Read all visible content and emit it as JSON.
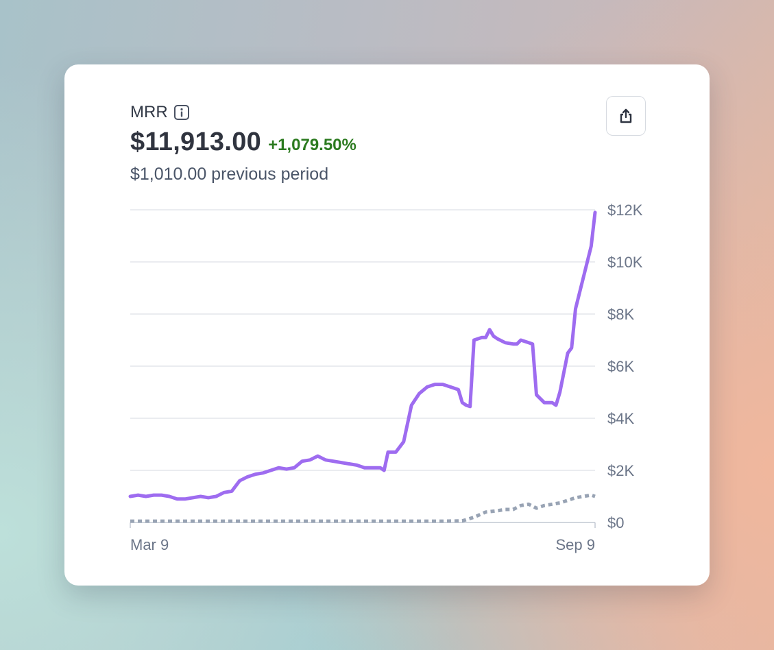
{
  "metric": {
    "name": "MRR",
    "value": "$11,913.00",
    "change": "+1,079.50%",
    "previous_period": "$1,010.00 previous period"
  },
  "icons": {
    "info": "info-icon",
    "export": "share-export-icon"
  },
  "colors": {
    "current_line": "#9e6cf0",
    "previous_line": "#98a3b4",
    "positive_change": "#2b7a1f"
  },
  "chart_data": {
    "type": "line",
    "title": "MRR",
    "x_labels": [
      "Mar 9",
      "Sep 9"
    ],
    "ylim": [
      0,
      12000
    ],
    "y_ticks": [
      0,
      2000,
      4000,
      6000,
      8000,
      10000,
      12000
    ],
    "y_tick_labels": [
      "$0",
      "$2K",
      "$4K",
      "$6K",
      "$8K",
      "$10K",
      "$12K"
    ],
    "y_axis_side": "right",
    "grid": "horizontal",
    "legend": "none",
    "series": [
      {
        "style": "solid",
        "color": "#9e6cf0",
        "points": [
          [
            0,
            1000
          ],
          [
            2,
            1050
          ],
          [
            4,
            1000
          ],
          [
            6,
            1050
          ],
          [
            8,
            1050
          ],
          [
            10,
            1000
          ],
          [
            12,
            900
          ],
          [
            14,
            900
          ],
          [
            16,
            950
          ],
          [
            18,
            1000
          ],
          [
            20,
            950
          ],
          [
            22,
            1000
          ],
          [
            24,
            1150
          ],
          [
            26,
            1200
          ],
          [
            28,
            1600
          ],
          [
            30,
            1750
          ],
          [
            32,
            1850
          ],
          [
            34,
            1900
          ],
          [
            36,
            2000
          ],
          [
            38,
            2100
          ],
          [
            40,
            2050
          ],
          [
            42,
            2100
          ],
          [
            44,
            2350
          ],
          [
            46,
            2400
          ],
          [
            48,
            2550
          ],
          [
            50,
            2400
          ],
          [
            52,
            2350
          ],
          [
            54,
            2300
          ],
          [
            56,
            2250
          ],
          [
            58,
            2200
          ],
          [
            60,
            2100
          ],
          [
            62,
            2100
          ],
          [
            64,
            2100
          ],
          [
            65,
            2000
          ],
          [
            66,
            2700
          ],
          [
            68,
            2700
          ],
          [
            70,
            3100
          ],
          [
            72,
            4500
          ],
          [
            74,
            4950
          ],
          [
            76,
            5200
          ],
          [
            78,
            5300
          ],
          [
            80,
            5300
          ],
          [
            82,
            5200
          ],
          [
            84,
            5100
          ],
          [
            85,
            4600
          ],
          [
            86,
            4500
          ],
          [
            87,
            4450
          ],
          [
            88,
            7000
          ],
          [
            90,
            7100
          ],
          [
            91,
            7100
          ],
          [
            92,
            7400
          ],
          [
            93,
            7150
          ],
          [
            94,
            7050
          ],
          [
            96,
            6900
          ],
          [
            98,
            6850
          ],
          [
            99,
            6850
          ],
          [
            100,
            7000
          ],
          [
            102,
            6900
          ],
          [
            103,
            6850
          ],
          [
            104,
            4900
          ],
          [
            106,
            4600
          ],
          [
            108,
            4600
          ],
          [
            109,
            4500
          ],
          [
            110,
            5000
          ],
          [
            112,
            6500
          ],
          [
            113,
            6700
          ],
          [
            114,
            8200
          ],
          [
            116,
            9400
          ],
          [
            118,
            10600
          ],
          [
            119,
            11900
          ]
        ]
      },
      {
        "style": "dotted",
        "color": "#98a3b4",
        "points": [
          [
            0,
            50
          ],
          [
            20,
            50
          ],
          [
            40,
            50
          ],
          [
            60,
            50
          ],
          [
            80,
            50
          ],
          [
            85,
            60
          ],
          [
            88,
            200
          ],
          [
            91,
            400
          ],
          [
            94,
            450
          ],
          [
            96,
            500
          ],
          [
            98,
            500
          ],
          [
            100,
            650
          ],
          [
            102,
            700
          ],
          [
            104,
            550
          ],
          [
            106,
            650
          ],
          [
            110,
            750
          ],
          [
            112,
            850
          ],
          [
            114,
            950
          ],
          [
            116,
            1000
          ],
          [
            118,
            1050
          ],
          [
            119,
            1000
          ]
        ]
      }
    ]
  }
}
